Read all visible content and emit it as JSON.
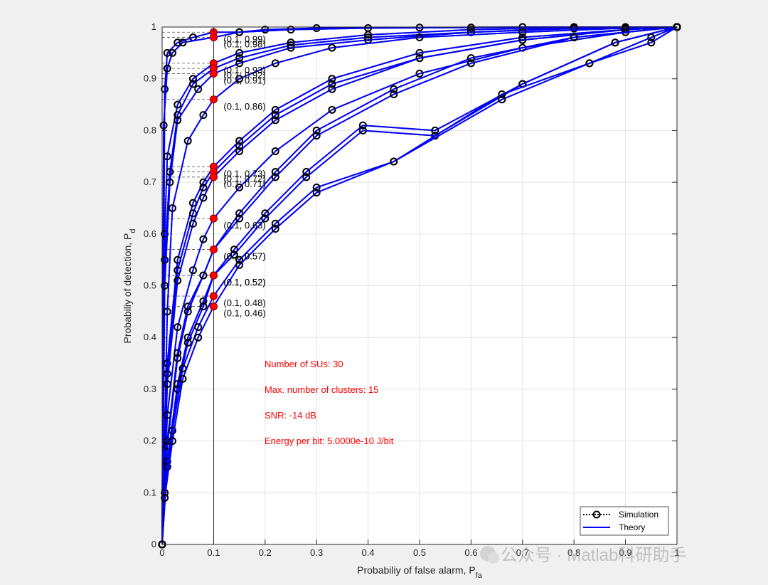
{
  "colors": {
    "background": "#f0f0f0",
    "axes_bg": "#ffffff",
    "theory": "#0000ff",
    "simulation": "#000000",
    "marker_point": "#ff0000",
    "annotation_text": "#ff0000",
    "grid": "#e3e3e3"
  },
  "watermark": "公众号 · Matlab科研助手",
  "chart_data": {
    "type": "line",
    "xlabel": "Probabiliy of false alarm, P",
    "xlabel_sub": "fa",
    "ylabel": "Probabiliy of detection, P",
    "ylabel_sub": "d",
    "xlim": [
      0,
      1
    ],
    "ylim": [
      0,
      1
    ],
    "grid": true,
    "xticks": [
      0,
      0.1,
      0.2,
      0.3,
      0.4,
      0.5,
      0.6,
      0.7,
      0.8,
      0.9,
      1
    ],
    "yticks": [
      0,
      0.1,
      0.2,
      0.3,
      0.4,
      0.5,
      0.6,
      0.7,
      0.8,
      0.9,
      1
    ],
    "xtick_labels": [
      "0",
      "0.1",
      "0.2",
      "0.3",
      "0.4",
      "0.5",
      "0.6",
      "0.7",
      "0.8",
      "0.9",
      "1"
    ],
    "ytick_labels": [
      "0",
      "0.1",
      "0.2",
      "0.3",
      "0.4",
      "0.5",
      "0.6",
      "0.7",
      "0.8",
      "0.9",
      "1"
    ],
    "legend": {
      "location": "bottom-right",
      "entries": [
        {
          "name": "Simulation",
          "style": "dotted-black-circle"
        },
        {
          "name": "Theory",
          "style": "solid-blue"
        }
      ]
    },
    "annotations": [
      "Number of SUs: 30",
      "Max. number of clusters: 15",
      "SNR: -14 dB",
      "Energy per bit: 5.0000e-10 J/bit"
    ],
    "vertical_line_x": 0.1,
    "operating_points": [
      {
        "x": 0.1,
        "y": 0.99,
        "label": "(0.1, 0.99)"
      },
      {
        "x": 0.1,
        "y": 0.98,
        "label": "(0.1, 0.98)"
      },
      {
        "x": 0.1,
        "y": 0.93,
        "label": "(0.1, 0.93)"
      },
      {
        "x": 0.1,
        "y": 0.92,
        "label": "(0.1, 0.92)"
      },
      {
        "x": 0.1,
        "y": 0.91,
        "label": "(0.1, 0.91)"
      },
      {
        "x": 0.1,
        "y": 0.86,
        "label": "(0.1, 0.86)"
      },
      {
        "x": 0.1,
        "y": 0.73,
        "label": "(0.1, 0.73)"
      },
      {
        "x": 0.1,
        "y": 0.72,
        "label": "(0.1, 0.72)"
      },
      {
        "x": 0.1,
        "y": 0.71,
        "label": "(0.1, 0.71)"
      },
      {
        "x": 0.1,
        "y": 0.63,
        "label": "(0.1, 0.63)"
      },
      {
        "x": 0.1,
        "y": 0.57,
        "label": "(0.1, 0.57)"
      },
      {
        "x": 0.1,
        "y": 0.57,
        "label": "(0.1, 0.57)"
      },
      {
        "x": 0.1,
        "y": 0.52,
        "label": "(0.1, 0.52)"
      },
      {
        "x": 0.1,
        "y": 0.52,
        "label": "(0.1, 0.52)"
      },
      {
        "x": 0.1,
        "y": 0.48,
        "label": "(0.1, 0.48)"
      },
      {
        "x": 0.1,
        "y": 0.46,
        "label": "(0.1, 0.46)"
      }
    ],
    "series": [
      {
        "name": "curve-1",
        "x": [
          0,
          0.005,
          0.01,
          0.03,
          0.06,
          0.1,
          0.15,
          0.2,
          0.3,
          0.5,
          0.7,
          0.9,
          1
        ],
        "y": [
          0,
          0.88,
          0.95,
          0.97,
          0.98,
          0.99,
          0.99,
          0.995,
          0.998,
          0.999,
          1,
          1,
          1
        ]
      },
      {
        "name": "curve-2",
        "x": [
          0,
          0.003,
          0.01,
          0.02,
          0.04,
          0.1,
          0.15,
          0.25,
          0.4,
          0.6,
          0.8,
          1
        ],
        "y": [
          0,
          0.81,
          0.92,
          0.95,
          0.97,
          0.98,
          0.99,
          0.995,
          0.998,
          0.999,
          1,
          1
        ]
      },
      {
        "name": "curve-3",
        "x": [
          0,
          0.005,
          0.01,
          0.03,
          0.06,
          0.1,
          0.15,
          0.25,
          0.4,
          0.6,
          0.8,
          1
        ],
        "y": [
          0,
          0.6,
          0.75,
          0.85,
          0.9,
          0.93,
          0.95,
          0.97,
          0.985,
          0.995,
          0.999,
          1
        ]
      },
      {
        "name": "curve-4",
        "x": [
          0,
          0.005,
          0.015,
          0.03,
          0.06,
          0.1,
          0.15,
          0.25,
          0.4,
          0.6,
          0.8,
          1
        ],
        "y": [
          0,
          0.55,
          0.72,
          0.83,
          0.89,
          0.92,
          0.94,
          0.965,
          0.98,
          0.99,
          0.998,
          1
        ]
      },
      {
        "name": "curve-5",
        "x": [
          0,
          0.005,
          0.015,
          0.03,
          0.07,
          0.1,
          0.15,
          0.25,
          0.4,
          0.6,
          0.8,
          1
        ],
        "y": [
          0,
          0.5,
          0.7,
          0.82,
          0.88,
          0.91,
          0.93,
          0.96,
          0.975,
          0.99,
          0.997,
          1
        ]
      },
      {
        "name": "curve-6",
        "x": [
          0,
          0.01,
          0.02,
          0.05,
          0.08,
          0.1,
          0.15,
          0.22,
          0.33,
          0.5,
          0.7,
          0.9,
          1
        ],
        "y": [
          0,
          0.45,
          0.65,
          0.78,
          0.83,
          0.86,
          0.9,
          0.93,
          0.96,
          0.98,
          0.99,
          0.998,
          1
        ]
      },
      {
        "name": "curve-7",
        "x": [
          0,
          0.01,
          0.03,
          0.06,
          0.08,
          0.1,
          0.15,
          0.22,
          0.33,
          0.5,
          0.7,
          0.9,
          1
        ],
        "y": [
          0,
          0.35,
          0.55,
          0.66,
          0.7,
          0.73,
          0.78,
          0.84,
          0.9,
          0.95,
          0.98,
          0.995,
          1
        ]
      },
      {
        "name": "curve-8",
        "x": [
          0,
          0.01,
          0.03,
          0.06,
          0.08,
          0.1,
          0.15,
          0.22,
          0.33,
          0.5,
          0.7,
          0.9,
          1
        ],
        "y": [
          0,
          0.33,
          0.53,
          0.64,
          0.69,
          0.72,
          0.77,
          0.83,
          0.89,
          0.94,
          0.975,
          0.995,
          1
        ]
      },
      {
        "name": "curve-9",
        "x": [
          0,
          0.01,
          0.03,
          0.06,
          0.08,
          0.1,
          0.15,
          0.22,
          0.33,
          0.5,
          0.7,
          0.9,
          1
        ],
        "y": [
          0,
          0.31,
          0.51,
          0.62,
          0.67,
          0.71,
          0.76,
          0.82,
          0.88,
          0.94,
          0.975,
          0.995,
          1
        ]
      },
      {
        "name": "curve-10",
        "x": [
          0,
          0.01,
          0.03,
          0.06,
          0.08,
          0.1,
          0.15,
          0.22,
          0.33,
          0.5,
          0.7,
          0.9,
          1
        ],
        "y": [
          0,
          0.25,
          0.42,
          0.53,
          0.59,
          0.63,
          0.69,
          0.76,
          0.84,
          0.91,
          0.96,
          0.99,
          1
        ]
      },
      {
        "name": "curve-11",
        "x": [
          0,
          0.01,
          0.03,
          0.05,
          0.08,
          0.1,
          0.15,
          0.22,
          0.3,
          0.45,
          0.6,
          0.8,
          1
        ],
        "y": [
          0,
          0.2,
          0.37,
          0.46,
          0.52,
          0.57,
          0.64,
          0.72,
          0.8,
          0.88,
          0.94,
          0.98,
          1
        ]
      },
      {
        "name": "curve-12",
        "x": [
          0,
          0.01,
          0.03,
          0.05,
          0.08,
          0.1,
          0.15,
          0.22,
          0.3,
          0.45,
          0.6,
          0.8,
          1
        ],
        "y": [
          0,
          0.19,
          0.36,
          0.45,
          0.52,
          0.57,
          0.63,
          0.71,
          0.79,
          0.87,
          0.93,
          0.98,
          1
        ]
      },
      {
        "name": "curve-13",
        "x": [
          0,
          0.01,
          0.03,
          0.05,
          0.08,
          0.1,
          0.14,
          0.2,
          0.28,
          0.39,
          0.53,
          0.7,
          0.88,
          1
        ],
        "y": [
          0,
          0.16,
          0.31,
          0.4,
          0.47,
          0.52,
          0.57,
          0.64,
          0.72,
          0.81,
          0.8,
          0.89,
          0.97,
          1
        ]
      },
      {
        "name": "curve-14",
        "x": [
          0,
          0.01,
          0.03,
          0.05,
          0.08,
          0.1,
          0.14,
          0.2,
          0.28,
          0.39,
          0.53,
          0.7,
          0.88,
          1
        ],
        "y": [
          0,
          0.15,
          0.3,
          0.39,
          0.46,
          0.52,
          0.56,
          0.63,
          0.71,
          0.8,
          0.79,
          0.89,
          0.97,
          1
        ]
      },
      {
        "name": "curve-15",
        "x": [
          0,
          0.005,
          0.02,
          0.04,
          0.07,
          0.1,
          0.15,
          0.22,
          0.3,
          0.45,
          0.66,
          0.83,
          0.95,
          1
        ],
        "y": [
          0,
          0.1,
          0.22,
          0.34,
          0.42,
          0.48,
          0.55,
          0.62,
          0.69,
          0.74,
          0.87,
          0.93,
          0.98,
          1
        ]
      },
      {
        "name": "curve-16",
        "x": [
          0,
          0.005,
          0.02,
          0.04,
          0.07,
          0.1,
          0.15,
          0.22,
          0.3,
          0.45,
          0.66,
          0.83,
          0.95,
          1
        ],
        "y": [
          0,
          0.09,
          0.2,
          0.32,
          0.4,
          0.46,
          0.54,
          0.61,
          0.68,
          0.74,
          0.86,
          0.93,
          0.97,
          1
        ]
      }
    ]
  }
}
